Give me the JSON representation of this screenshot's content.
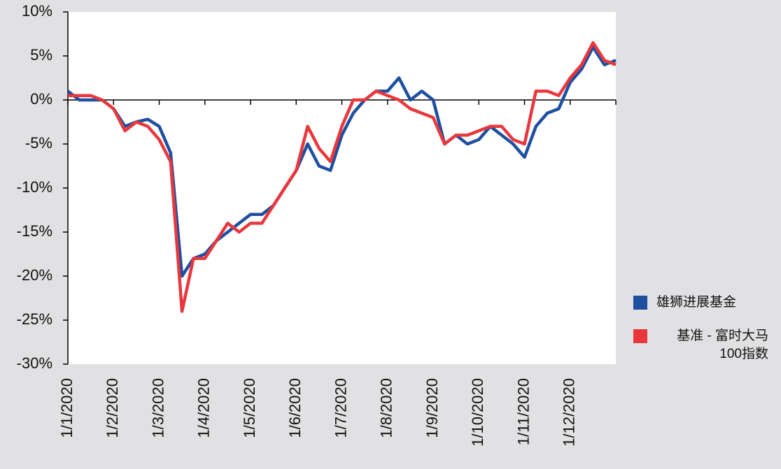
{
  "chart_data": {
    "type": "line",
    "categories": [
      "1/1/2020",
      null,
      null,
      null,
      "1/2/2020",
      null,
      null,
      null,
      "1/3/2020",
      null,
      null,
      null,
      "1/4/2020",
      null,
      null,
      null,
      "1/5/2020",
      null,
      null,
      null,
      "1/6/2020",
      null,
      null,
      null,
      "1/7/2020",
      null,
      null,
      null,
      "1/8/2020",
      null,
      null,
      null,
      "1/9/2020",
      null,
      null,
      null,
      "1/10/2020",
      null,
      null,
      null,
      "1/11/2020",
      null,
      null,
      null,
      "1/12/2020",
      null,
      null,
      null,
      null
    ],
    "series": [
      {
        "name": "雄狮进展基金",
        "color": "#1f4fa0",
        "values": [
          1,
          0,
          0,
          0,
          -1,
          -3,
          -2.5,
          -2.2,
          -3,
          -6,
          -20,
          -18,
          -17.5,
          -16,
          -15,
          -14,
          -13,
          -13,
          -12,
          -10,
          -8,
          -5,
          -7.5,
          -8,
          -4,
          -1.5,
          0,
          1,
          1,
          2.5,
          0,
          1,
          0,
          -5,
          -4,
          -5,
          -4.5,
          -3,
          -4,
          -5,
          -6.5,
          -3,
          -1.5,
          -1,
          2,
          3.5,
          6,
          4,
          4.5
        ]
      },
      {
        "name": "基准 - 富时大马 100指数",
        "color": "#e8383d",
        "values": [
          0.5,
          0.5,
          0.5,
          0,
          -1,
          -3.5,
          -2.5,
          -3,
          -4.5,
          -7,
          -24,
          -18,
          -18,
          -16,
          -14,
          -15,
          -14,
          -14,
          -12,
          -10,
          -8,
          -3,
          -5.5,
          -7,
          -3,
          0,
          0,
          1,
          0.5,
          0,
          -1,
          -1.5,
          -2,
          -5,
          -4,
          -4,
          -3.5,
          -3,
          -3,
          -4.5,
          -5,
          1,
          1,
          0.5,
          2.5,
          4,
          6.5,
          4.5,
          4
        ]
      }
    ],
    "ylim": [
      -30,
      10
    ],
    "yticks": [
      {
        "value": -30,
        "label": "-30%"
      },
      {
        "value": -25,
        "label": "-25%"
      },
      {
        "value": -20,
        "label": "-20%"
      },
      {
        "value": -15,
        "label": "-15%"
      },
      {
        "value": -10,
        "label": "-10%"
      },
      {
        "value": -5,
        "label": "-5%"
      },
      {
        "value": 0,
        "label": "0%"
      },
      {
        "value": 5,
        "label": "5%"
      },
      {
        "value": 10,
        "label": "10%"
      }
    ],
    "grid": false,
    "legend": "right"
  }
}
